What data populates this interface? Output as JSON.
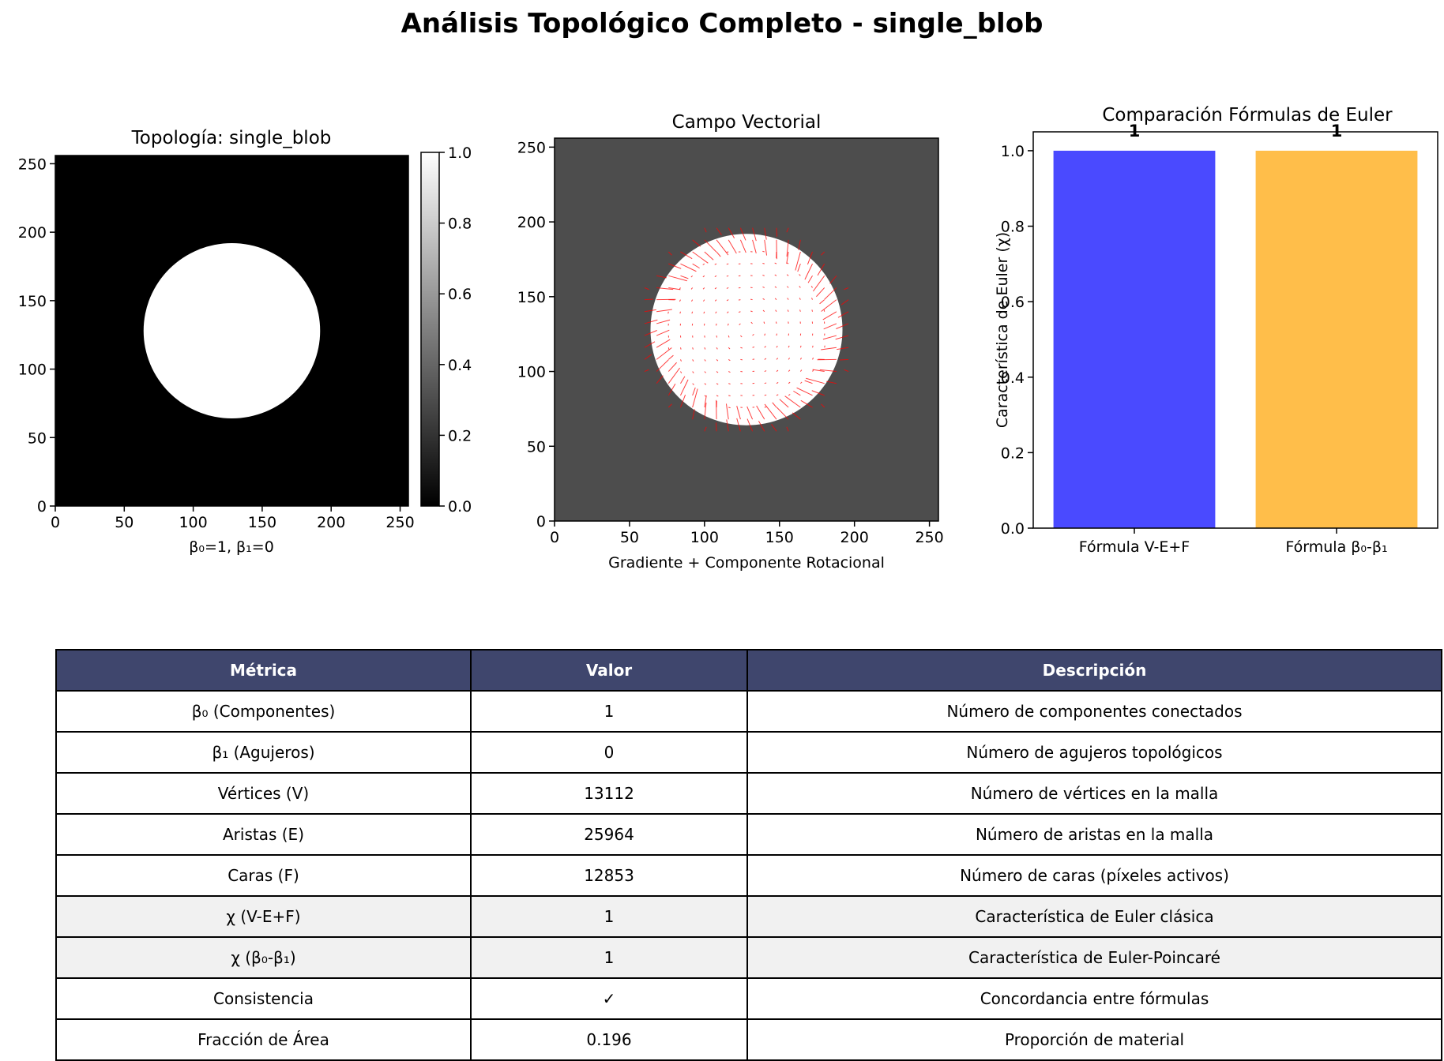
{
  "figure_title": "Análisis Topológico Completo - single_blob",
  "chart_data": [
    {
      "type": "heatmap",
      "title": "Topología: single_blob",
      "xlabel": "β₀=1, β₁=0",
      "ylabel": "",
      "xlim": [
        0,
        256
      ],
      "ylim": [
        0,
        256
      ],
      "x_ticks": [
        "0",
        "50",
        "100",
        "150",
        "200",
        "250"
      ],
      "y_ticks": [
        "0",
        "50",
        "100",
        "150",
        "200",
        "250"
      ],
      "shape": {
        "kind": "disk",
        "center": [
          128,
          128
        ],
        "radius": 64
      },
      "colormap": "gray",
      "colorbar": {
        "range": [
          0,
          1
        ],
        "ticks": [
          "0.0",
          "0.2",
          "0.4",
          "0.6",
          "0.8",
          "1.0"
        ]
      }
    },
    {
      "type": "heatmap",
      "title": "Campo Vectorial",
      "xlabel": "Gradiente + Componente Rotacional",
      "ylabel": "",
      "xlim": [
        0,
        256
      ],
      "ylim": [
        0,
        256
      ],
      "x_ticks": [
        "0",
        "50",
        "100",
        "150",
        "200",
        "250"
      ],
      "y_ticks": [
        "0",
        "50",
        "100",
        "150",
        "200",
        "250"
      ],
      "shape": {
        "kind": "disk",
        "center": [
          128,
          128
        ],
        "radius": 64
      },
      "background_color": "#4d4d4d",
      "disk_color": "#ffffff",
      "arrow_color": "#ff0000"
    },
    {
      "type": "bar",
      "title": "Comparación Fórmulas de Euler",
      "xlabel": "",
      "ylabel": "Característica de Euler (χ)",
      "categories": [
        "Fórmula V-E+F",
        "Fórmula β₀-β₁"
      ],
      "values": [
        1,
        1
      ],
      "value_labels": [
        "1",
        "1"
      ],
      "colors": [
        "#4a4aff",
        "#ffbe4a"
      ],
      "ylim": [
        0,
        1.05
      ],
      "y_ticks": [
        "0.0",
        "0.2",
        "0.4",
        "0.6",
        "0.8",
        "1.0"
      ]
    }
  ],
  "table": {
    "headers": [
      "Métrica",
      "Valor",
      "Descripción"
    ],
    "header_color": "#3f466d",
    "rows": [
      {
        "metric": "β₀ (Componentes)",
        "value": "1",
        "desc": "Número de componentes conectados"
      },
      {
        "metric": "β₁ (Agujeros)",
        "value": "0",
        "desc": "Número de agujeros topológicos"
      },
      {
        "metric": "Vértices (V)",
        "value": "13112",
        "desc": "Número de vértices en la malla"
      },
      {
        "metric": "Aristas (E)",
        "value": "25964",
        "desc": "Número de aristas en la malla"
      },
      {
        "metric": "Caras (F)",
        "value": "12853",
        "desc": "Número de caras (píxeles activos)"
      },
      {
        "metric": "χ (V-E+F)",
        "value": "1",
        "desc": "Característica de Euler clásica"
      },
      {
        "metric": "χ (β₀-β₁)",
        "value": "1",
        "desc": "Característica de Euler-Poincaré"
      },
      {
        "metric": "Consistencia",
        "value": "✓",
        "desc": "Concordancia entre fórmulas"
      },
      {
        "metric": "Fracción de Área",
        "value": "0.196",
        "desc": "Proporción de material"
      }
    ]
  }
}
